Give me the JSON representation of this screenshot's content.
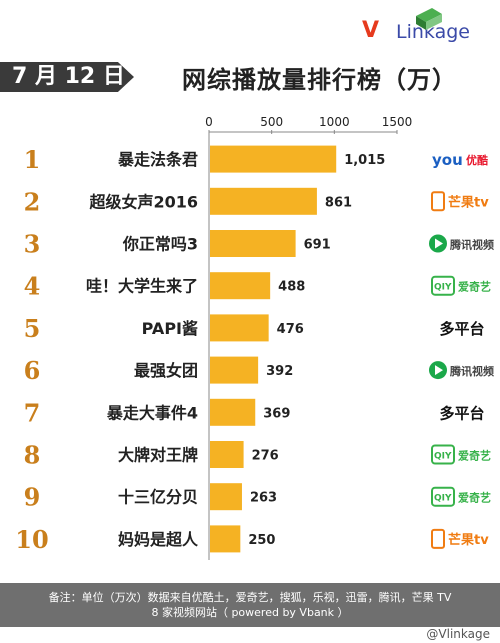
{
  "header": {
    "brand": "VLinkage",
    "brand_v": "V",
    "brand_rest": "Linkage",
    "date": "7 月 12 日",
    "title": "网综播放量排行榜（万）"
  },
  "chart_data": {
    "type": "bar",
    "orientation": "horizontal",
    "x_ticks": [
      0,
      500,
      1000,
      1500
    ],
    "xlim": [
      0,
      1500
    ],
    "bar_color": "#f5b223",
    "rank_color": "#c97f1c",
    "categories": [
      "暴走法条君",
      "超级女声2016",
      "你正常吗3",
      "哇！大学生来了",
      "PAPI酱",
      "最强女团",
      "暴走大事件4",
      "大牌对王牌",
      "十三亿分贝",
      "妈妈是超人"
    ],
    "ranks": [
      "1",
      "2",
      "3",
      "4",
      "5",
      "6",
      "7",
      "8",
      "9",
      "10"
    ],
    "values": [
      1015,
      861,
      691,
      488,
      476,
      392,
      369,
      276,
      263,
      250
    ],
    "value_labels": [
      "1,015",
      "861",
      "691",
      "488",
      "476",
      "392",
      "369",
      "276",
      "263",
      "250"
    ],
    "platforms": [
      {
        "icon": "youku-icon",
        "label": "优酷",
        "color": "#e8182e"
      },
      {
        "icon": "mango-tv-icon",
        "label": "芒果tv",
        "color": "#f07c12"
      },
      {
        "icon": "tencent-video-icon",
        "label": "腾讯视频",
        "color": "#1ba84a"
      },
      {
        "icon": "iqiyi-icon",
        "label": "爱奇艺",
        "color": "#37b24a"
      },
      {
        "icon": "multi-platform-text",
        "label": "多平台",
        "color": "#111111"
      },
      {
        "icon": "tencent-video-icon",
        "label": "腾讯视频",
        "color": "#1ba84a"
      },
      {
        "icon": "multi-platform-text",
        "label": "多平台",
        "color": "#111111"
      },
      {
        "icon": "iqiyi-icon",
        "label": "爱奇艺",
        "color": "#37b24a"
      },
      {
        "icon": "iqiyi-icon",
        "label": "爱奇艺",
        "color": "#37b24a"
      },
      {
        "icon": "mango-tv-icon",
        "label": "芒果tv",
        "color": "#f07c12"
      }
    ]
  },
  "footer": {
    "note_line1": "备注：单位（万次）数据来自优酷土，爱奇艺，搜狐，乐视，迅雷，腾讯，芒果 TV",
    "note_line2": "8 家视频网站（ powered by Vbank ）"
  },
  "credit": "@Vlinkage"
}
